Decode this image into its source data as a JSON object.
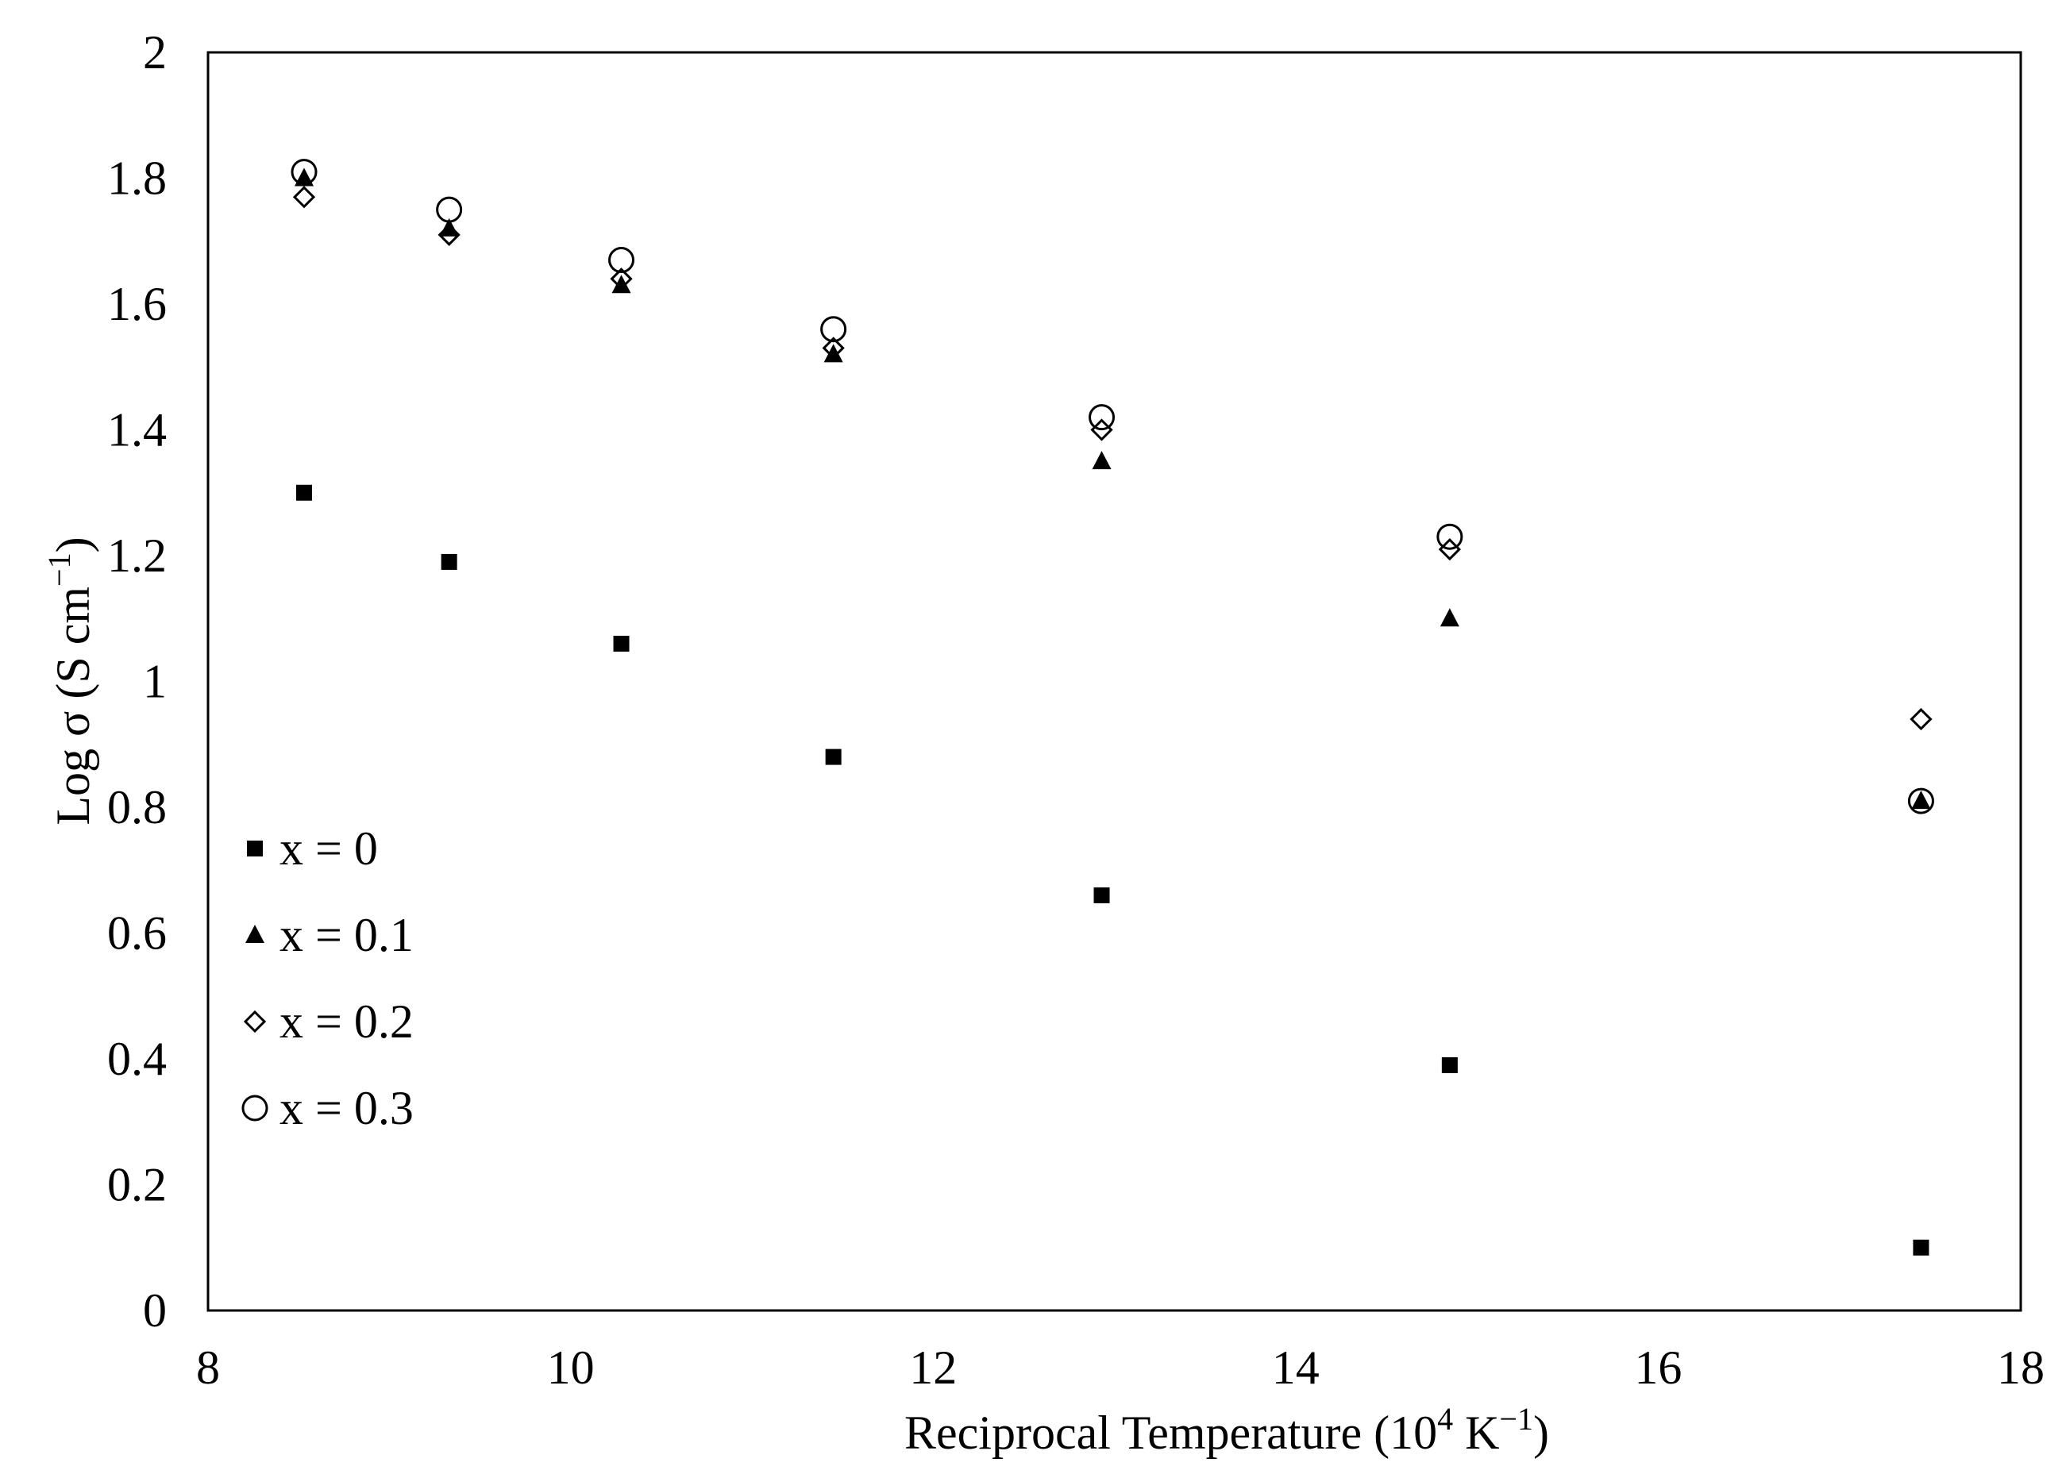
{
  "chart_data": {
    "type": "scatter",
    "title": "",
    "xlabel": "Reciprocal Temperature",
    "xlabel_unit_base": "10",
    "xlabel_unit_exp": "4",
    "xlabel_unit_rest": " K",
    "xlabel_unit_rest_exp": "−1",
    "ylabel": "Log σ (S cm",
    "ylabel_exp": "−1",
    "ylabel_close": ")",
    "xlim": [
      8,
      18
    ],
    "ylim": [
      0,
      2
    ],
    "xticks": [
      "8",
      "10",
      "12",
      "14",
      "16",
      "18"
    ],
    "yticks": [
      "0",
      "0.2",
      "0.4",
      "0.6",
      "0.8",
      "1",
      "1.2",
      "1.4",
      "1.6",
      "1.8",
      "2"
    ],
    "grid": false,
    "legend_position": "left",
    "series": [
      {
        "name": "x = 0",
        "marker": "square-filled",
        "x": [
          8.53,
          9.33,
          10.28,
          11.45,
          12.93,
          14.85,
          17.45
        ],
        "y": [
          1.3,
          1.19,
          1.06,
          0.88,
          0.66,
          0.39,
          0.1
        ]
      },
      {
        "name": "x = 0.1",
        "marker": "triangle-filled",
        "x": [
          8.53,
          9.33,
          10.28,
          11.45,
          12.93,
          14.85,
          17.45
        ],
        "y": [
          1.8,
          1.72,
          1.63,
          1.52,
          1.35,
          1.1,
          0.81
        ]
      },
      {
        "name": "x = 0.2",
        "marker": "diamond-open",
        "x": [
          8.53,
          9.33,
          10.28,
          11.45,
          12.93,
          14.85,
          17.45
        ],
        "y": [
          1.77,
          1.71,
          1.64,
          1.53,
          1.4,
          1.21,
          0.94
        ]
      },
      {
        "name": "x = 0.3",
        "marker": "circle-open",
        "x": [
          8.53,
          9.33,
          10.28,
          11.45,
          12.93,
          14.85,
          17.45
        ],
        "y": [
          1.81,
          1.75,
          1.67,
          1.56,
          1.42,
          1.23,
          0.81
        ]
      }
    ]
  }
}
